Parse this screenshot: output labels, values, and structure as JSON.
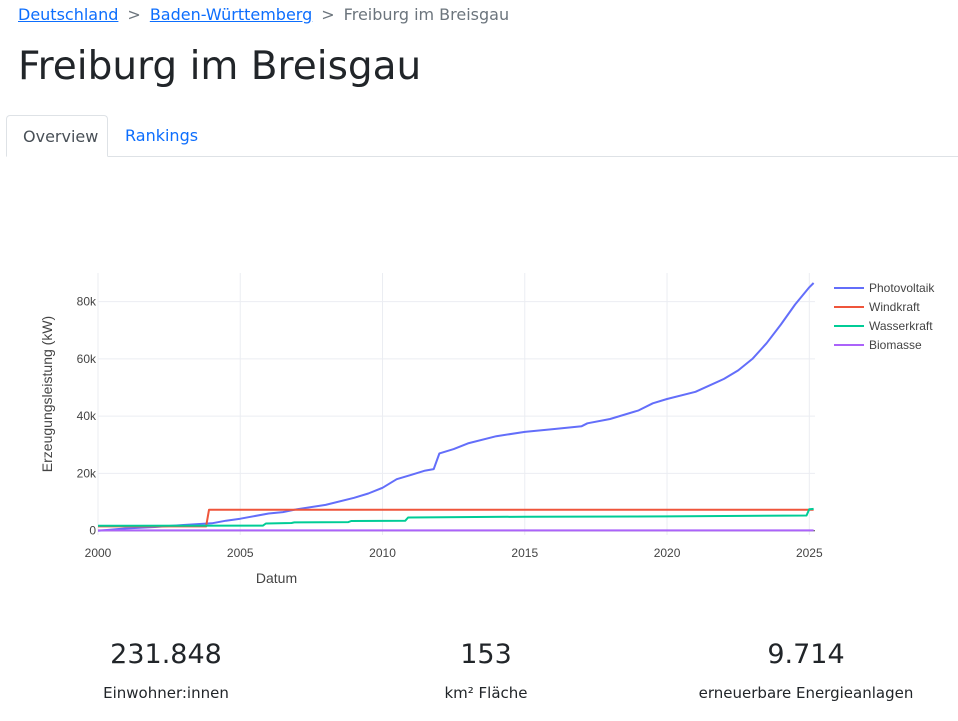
{
  "breadcrumb": {
    "level1": "Deutschland",
    "level2": "Baden-Württemberg",
    "current": "Freiburg im Breisgau",
    "separator": ">"
  },
  "page_title": "Freiburg im Breisgau",
  "tabs": [
    {
      "label": "Overview",
      "active": true
    },
    {
      "label": "Rankings",
      "active": false
    }
  ],
  "stats": [
    {
      "value": "231.848",
      "label": "Einwohner:innen"
    },
    {
      "value": "153",
      "label": "km² Fläche"
    },
    {
      "value": "9.714",
      "label": "erneuerbare Energieanlagen"
    }
  ],
  "chart_data": {
    "type": "line",
    "title": "",
    "xlabel": "Datum",
    "ylabel": "Erzeugungsleistung (kW)",
    "xlim": [
      2000,
      2025.2
    ],
    "ylim": [
      -1500,
      90000
    ],
    "x_ticks": [
      2000,
      2005,
      2010,
      2015,
      2020,
      2025
    ],
    "y_ticks": [
      0,
      20000,
      40000,
      60000,
      80000
    ],
    "y_tick_labels": [
      "0",
      "20k",
      "40k",
      "60k",
      "80k"
    ],
    "grid": true,
    "legend_position": "top-right",
    "series": [
      {
        "name": "Photovoltaik",
        "color": "#636efa",
        "points": [
          [
            2000,
            0
          ],
          [
            2001,
            800
          ],
          [
            2002,
            1300
          ],
          [
            2003,
            2000
          ],
          [
            2004,
            2600
          ],
          [
            2004.5,
            3500
          ],
          [
            2005,
            4200
          ],
          [
            2006,
            6000
          ],
          [
            2006.5,
            6500
          ],
          [
            2007,
            7500
          ],
          [
            2008,
            9000
          ],
          [
            2009,
            11500
          ],
          [
            2009.5,
            13000
          ],
          [
            2010,
            15000
          ],
          [
            2010.5,
            18000
          ],
          [
            2011,
            19500
          ],
          [
            2011.5,
            21000
          ],
          [
            2011.8,
            21500
          ],
          [
            2012,
            27000
          ],
          [
            2012.5,
            28500
          ],
          [
            2013,
            30500
          ],
          [
            2014,
            33000
          ],
          [
            2015,
            34500
          ],
          [
            2016,
            35500
          ],
          [
            2017,
            36500
          ],
          [
            2017.2,
            37500
          ],
          [
            2018,
            39000
          ],
          [
            2019,
            42000
          ],
          [
            2019.5,
            44500
          ],
          [
            2020,
            46000
          ],
          [
            2021,
            48500
          ],
          [
            2022,
            53000
          ],
          [
            2022.5,
            56000
          ],
          [
            2023,
            60000
          ],
          [
            2023.5,
            65500
          ],
          [
            2024,
            72000
          ],
          [
            2024.5,
            79000
          ],
          [
            2025,
            85000
          ],
          [
            2025.15,
            86500
          ]
        ]
      },
      {
        "name": "Windkraft",
        "color": "#ef553b",
        "points": [
          [
            2000,
            1500
          ],
          [
            2003.8,
            1500
          ],
          [
            2003.9,
            7300
          ],
          [
            2025.15,
            7300
          ]
        ]
      },
      {
        "name": "Wasserkraft",
        "color": "#00cc96",
        "points": [
          [
            2000,
            1700
          ],
          [
            2005.8,
            1800
          ],
          [
            2005.9,
            2500
          ],
          [
            2006.8,
            2700
          ],
          [
            2006.9,
            2900
          ],
          [
            2008.8,
            3000
          ],
          [
            2008.9,
            3400
          ],
          [
            2010.8,
            3500
          ],
          [
            2010.9,
            4600
          ],
          [
            2015,
            4900
          ],
          [
            2020,
            5000
          ],
          [
            2024.9,
            5300
          ],
          [
            2025,
            7500
          ],
          [
            2025.15,
            7600
          ]
        ]
      },
      {
        "name": "Biomasse",
        "color": "#ab63fa",
        "points": [
          [
            2000,
            100
          ],
          [
            2025.15,
            100
          ]
        ]
      }
    ]
  }
}
